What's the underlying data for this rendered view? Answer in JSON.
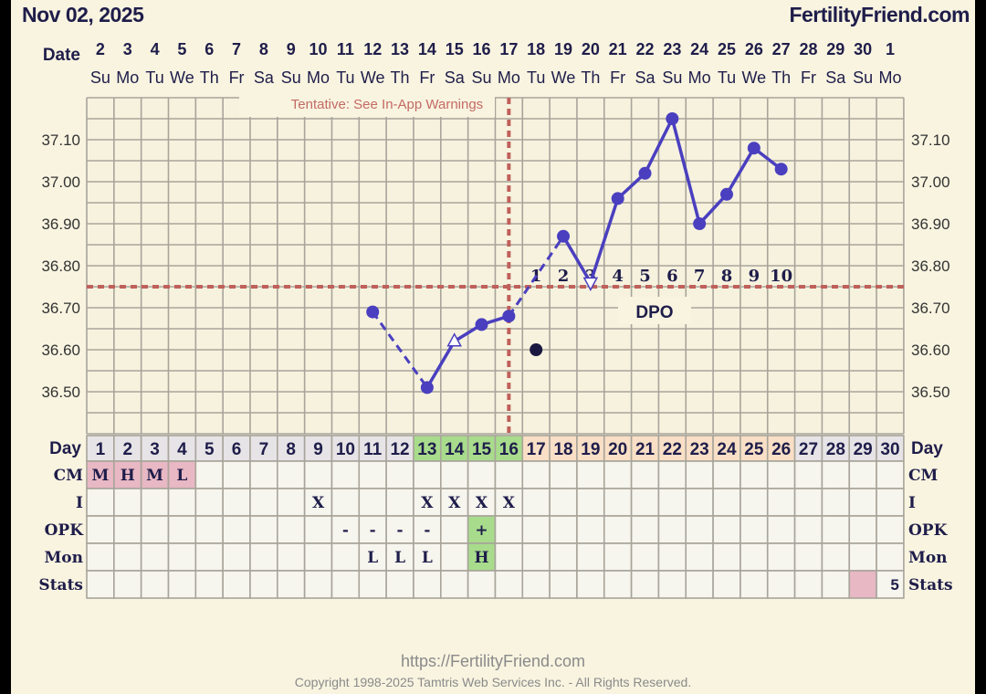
{
  "header": {
    "date_title": "Nov 02, 2025",
    "brand": "FertilityFriend.com"
  },
  "date_row": {
    "label": "Date",
    "dates": [
      "2",
      "3",
      "4",
      "5",
      "6",
      "7",
      "8",
      "9",
      "10",
      "11",
      "12",
      "13",
      "14",
      "15",
      "16",
      "17",
      "18",
      "19",
      "20",
      "21",
      "22",
      "23",
      "24",
      "25",
      "26",
      "27",
      "28",
      "29",
      "30",
      "1"
    ],
    "weekdays": [
      "Su",
      "Mo",
      "Tu",
      "We",
      "Th",
      "Fr",
      "Sa",
      "Su",
      "Mo",
      "Tu",
      "We",
      "Th",
      "Fr",
      "Sa",
      "Su",
      "Mo",
      "Tu",
      "We",
      "Th",
      "Fr",
      "Sa",
      "Su",
      "Mo",
      "Tu",
      "We",
      "Th",
      "Fr",
      "Sa",
      "Su",
      "Mo"
    ]
  },
  "chart_data": {
    "type": "line",
    "ylim": [
      36.4,
      37.2
    ],
    "y_ticks": [
      "37.10",
      "37.00",
      "36.90",
      "36.80",
      "36.70",
      "36.60",
      "36.50"
    ],
    "grid": true,
    "warning": "Tentative: See In-App Warnings",
    "coverline": 36.75,
    "ovulation_day": 16,
    "x_days": [
      11,
      13,
      14,
      15,
      16,
      17,
      18,
      19,
      20,
      21,
      22,
      23,
      24,
      25,
      26
    ],
    "temps": [
      36.69,
      36.51,
      36.62,
      36.66,
      36.68,
      36.6,
      36.87,
      36.76,
      36.96,
      37.02,
      37.15,
      36.9,
      36.97,
      37.08,
      37.03
    ],
    "markers": [
      "dot",
      "dot",
      "triangle-up",
      "dot",
      "dot",
      "discarded",
      "dot",
      "triangle-down",
      "dot",
      "dot",
      "dot",
      "dot",
      "dot",
      "dot",
      "dot"
    ],
    "dashed_segments": [
      [
        11,
        13
      ],
      [
        16,
        18
      ]
    ],
    "solid_segments": [
      [
        13,
        14
      ],
      [
        14,
        15
      ],
      [
        15,
        16
      ],
      [
        18,
        19
      ],
      [
        19,
        20
      ],
      [
        20,
        21
      ],
      [
        21,
        22
      ],
      [
        22,
        23
      ],
      [
        23,
        24
      ],
      [
        24,
        25
      ],
      [
        25,
        26
      ]
    ],
    "dpo_title": "DPO",
    "dpo_labels": [
      "1",
      "2",
      "3",
      "4",
      "5",
      "6",
      "7",
      "8",
      "9",
      "10"
    ],
    "dpo_start_day": 17,
    "colors": {
      "line": "#4a3fbf",
      "coverline": "#c0605a",
      "discarded": "#1a1840",
      "text": "#1f1d4a"
    }
  },
  "table": {
    "day_label": "Day",
    "days": [
      "1",
      "2",
      "3",
      "4",
      "5",
      "6",
      "7",
      "8",
      "9",
      "10",
      "11",
      "12",
      "13",
      "14",
      "15",
      "16",
      "17",
      "18",
      "19",
      "20",
      "21",
      "22",
      "23",
      "24",
      "25",
      "26",
      "27",
      "28",
      "29",
      "30"
    ],
    "day_colors": {
      "default": "#e6e4e6",
      "fertile": "#a8dc8c",
      "luteal": "#f8dfc6"
    },
    "fertile_days": [
      13,
      14,
      15,
      16
    ],
    "luteal_days": [
      17,
      18,
      19,
      20,
      21,
      22,
      23,
      24,
      25,
      26
    ],
    "rows": [
      {
        "label": "CM",
        "cells": {
          "1": "M",
          "2": "H",
          "3": "M",
          "4": "L"
        },
        "highlight": {
          "1": "#e8b8c4",
          "2": "#e8b8c4",
          "3": "#e8b8c4",
          "4": "#e8b8c4"
        }
      },
      {
        "label": "I",
        "cells": {
          "9": "X",
          "13": "X",
          "14": "X",
          "15": "X",
          "16": "X"
        },
        "highlight": {}
      },
      {
        "label": "OPK",
        "cells": {
          "10": "-",
          "11": "-",
          "12": "-",
          "13": "-",
          "15": "+"
        },
        "highlight": {
          "15": "#a8dc8c"
        }
      },
      {
        "label": "Mon",
        "cells": {
          "11": "L",
          "12": "L",
          "13": "L",
          "15": "H"
        },
        "highlight": {
          "15": "#a8dc8c"
        }
      },
      {
        "label": "Stats",
        "cells": {
          "30": "5"
        },
        "highlight": {
          "29": "#e8b8c4"
        }
      }
    ]
  },
  "footer": {
    "url": "https://FertilityFriend.com",
    "copyright": "Copyright 1998-2025 Tamtris Web Services Inc. - All Rights Reserved."
  }
}
